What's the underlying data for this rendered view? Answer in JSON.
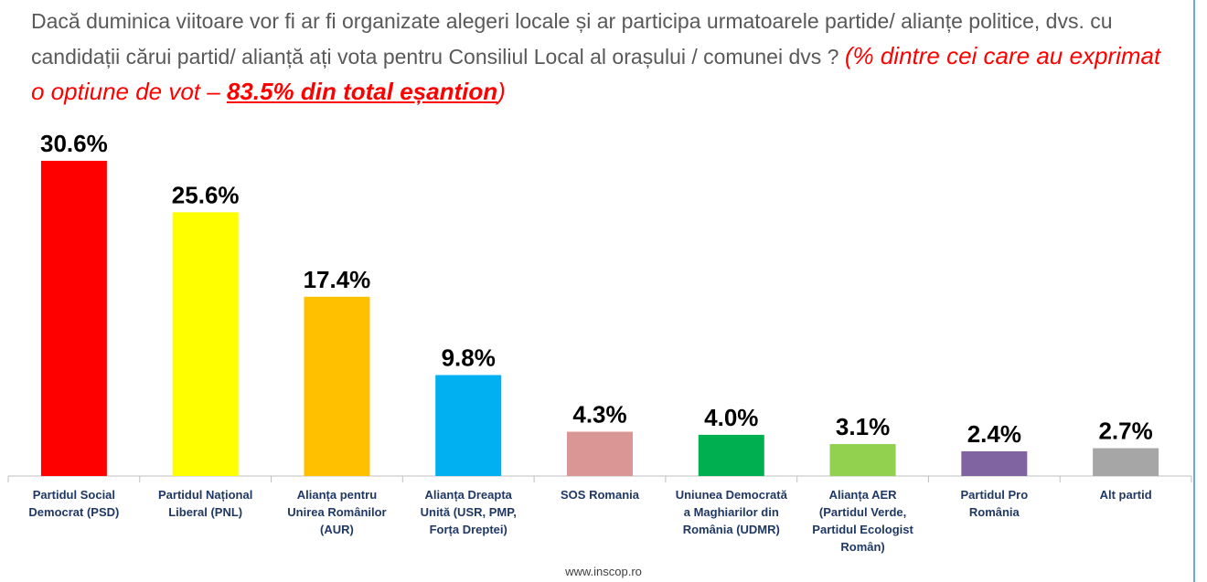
{
  "title": {
    "question": "Dacă duminica viitoare vor fi ar fi organizate alegeri locale și ar participa urmatoarele partide/ alianțe politice, dvs. cu candidații cărui partid/ alianță ați vota pentru Consiliul Local al orașului / comunei dvs ? ",
    "note_prefix": "(% dintre cei care au exprimat o optiune de vot – ",
    "note_emphasis": "83.5% din total eșantion",
    "note_suffix": ")"
  },
  "chart_data": {
    "type": "bar",
    "categories": [
      "Partidul Social Democrat (PSD)",
      "Partidul Național Liberal (PNL)",
      "Alianța pentru Unirea Românilor (AUR)",
      "Alianța Dreapta Unită (USR, PMP, Forța Dreptei)",
      "SOS Romania",
      "Uniunea Democrată a Maghiarilor din România (UDMR)",
      "Alianța AER (Partidul Verde, Partidul Ecologist Român)",
      "Partidul Pro România",
      "Alt partid"
    ],
    "values": [
      30.6,
      25.6,
      17.4,
      9.8,
      4.3,
      4.0,
      3.1,
      2.4,
      2.7
    ],
    "value_labels": [
      "30.6%",
      "25.6%",
      "17.4%",
      "9.8%",
      "4.3%",
      "4.0%",
      "3.1%",
      "2.4%",
      "2.7%"
    ],
    "colors": [
      "#ff0000",
      "#ffff00",
      "#ffc000",
      "#00b0f0",
      "#da9694",
      "#00b050",
      "#92d050",
      "#8064a2",
      "#a6a6a6"
    ],
    "title": "",
    "xlabel": "",
    "ylabel": "",
    "ylim": [
      0,
      30.6
    ],
    "grid": false,
    "legend": "none"
  },
  "footer": "www.inscop.ro"
}
